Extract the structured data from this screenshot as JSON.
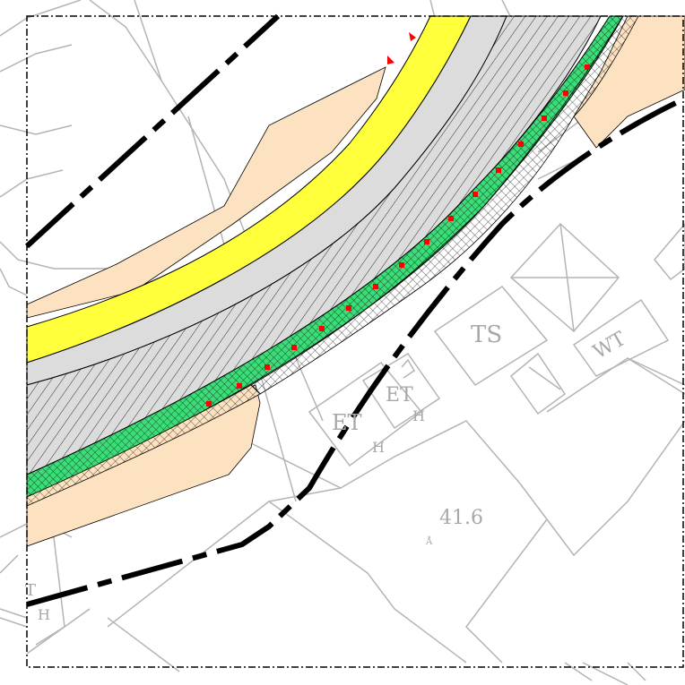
{
  "map": {
    "labels": {
      "ts": "TS",
      "wt": "WT",
      "et_left": "ET",
      "et_right": "ET",
      "h_left": "H",
      "h_right": "H",
      "elevation": "41.6",
      "elevation_mark": "Å",
      "t_edge": "T",
      "h_edge": "H"
    },
    "colors": {
      "road_yellow": "#ffff3c",
      "road_grey": "#dcdcdc",
      "orange_area": "#fce2c0",
      "green_strip": "#3cdc78",
      "red_marker": "#ff0000",
      "building_outline": "#b4b4b4",
      "boundary_line": "#000000"
    }
  }
}
